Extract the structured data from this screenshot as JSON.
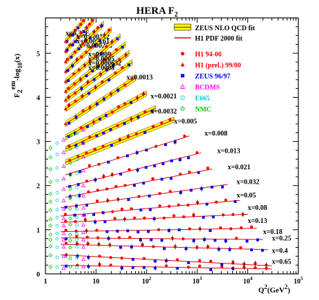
{
  "chart_data": {
    "type": "scatter",
    "title": "HERA F",
    "title_sub": "2",
    "xlabel": "Q2(GeV2)",
    "ylabel": "F2em-log10(x)",
    "xscale": "log",
    "xlim": [
      1,
      100000
    ],
    "ylim": [
      0,
      5.8
    ],
    "xticks": [
      {
        "value": 1,
        "label": "1"
      },
      {
        "value": 10,
        "label": "10"
      },
      {
        "value": 100,
        "label": "10",
        "exp": "2"
      },
      {
        "value": 1000,
        "label": "10",
        "exp": "3"
      },
      {
        "value": 10000,
        "label": "10",
        "exp": "4"
      },
      {
        "value": 100000,
        "label": "10",
        "exp": "5"
      }
    ],
    "yticks": [
      {
        "value": 0,
        "label": "0"
      },
      {
        "value": 1,
        "label": "1"
      },
      {
        "value": 2,
        "label": "2"
      },
      {
        "value": 3,
        "label": "3"
      },
      {
        "value": 4,
        "label": "4"
      },
      {
        "value": 5,
        "label": "5"
      }
    ],
    "legend": [
      {
        "label": "ZEUS NLO QCD fit",
        "marker": "band",
        "color": "#ffff00",
        "text_color": "#000000"
      },
      {
        "label": "H1 PDF 2000 fit",
        "marker": "line",
        "color": "#dd0000",
        "text_color": "#000000"
      },
      {
        "label": "H1 94-00",
        "marker": "circle",
        "color": "#ff0000",
        "text_color": "#ff0000"
      },
      {
        "label": "H1 (prel.) 99/00",
        "marker": "triangle",
        "color": "#ff0000",
        "text_color": "#ff0000"
      },
      {
        "label": "ZEUS 96/97",
        "marker": "square",
        "color": "#0000ff",
        "text_color": "#0000ff"
      },
      {
        "label": "BCDMS",
        "marker": "open-triangle",
        "color": "#ff00ff",
        "text_color": "#ff00ff"
      },
      {
        "label": "E665",
        "marker": "open-circle",
        "color": "#00cccc",
        "text_color": "#00cccc"
      },
      {
        "label": "NMC",
        "marker": "open-diamond",
        "color": "#00cc00",
        "text_color": "#00cc00"
      }
    ],
    "bins": [
      {
        "label": "x=6.32E-5",
        "y0": 4.75,
        "slope": 1.3,
        "qmin": 2.5,
        "qmax": 6.0,
        "label_q": 2.5,
        "label_y": 5.45
      },
      {
        "label": "x=0.000102",
        "y0": 4.55,
        "slope": 1.25,
        "qmin": 2.5,
        "qmax": 9.0,
        "label_q": 4.1,
        "label_y": 5.37
      },
      {
        "label": "x=0.000161",
        "y0": 4.35,
        "slope": 1.15,
        "qmin": 2.5,
        "qmax": 14,
        "label_q": 4.1,
        "label_y": 5.27
      },
      {
        "label": "x=0.000253",
        "y0": 4.17,
        "slope": 1.05,
        "qmin": 2.5,
        "qmax": 20,
        "label_q": 4.6,
        "label_y": 5.17
      },
      {
        "label": "x=0.0004",
        "y0": 3.98,
        "slope": 0.95,
        "qmin": 2.5,
        "qmax": 30,
        "label_q": 7.0,
        "label_y": 4.97
      },
      {
        "label": "x=0.0005",
        "y0": 3.78,
        "slope": 0.9,
        "qmin": 2.5,
        "qmax": 38,
        "label_q": 7.0,
        "label_y": 4.87
      },
      {
        "label": "x=0.000632",
        "y0": 3.6,
        "slope": 0.85,
        "qmin": 2.5,
        "qmax": 45,
        "label_q": 7.0,
        "label_y": 4.77
      },
      {
        "label": "x=0.0008",
        "y0": 3.42,
        "slope": 0.8,
        "qmin": 2.5,
        "qmax": 52,
        "label_q": 7.0,
        "label_y": 4.67
      },
      {
        "label": "x=0.0013",
        "y0": 3.1,
        "slope": 0.75,
        "qmin": 2.5,
        "qmax": 60,
        "label_q": 40,
        "label_y": 4.45
      },
      {
        "label": "x=0.0021",
        "y0": 2.85,
        "slope": 0.62,
        "qmin": 2.5,
        "qmax": 100,
        "label_q": 120,
        "label_y": 4.02
      },
      {
        "label": "x=0.0032",
        "y0": 2.62,
        "slope": 0.52,
        "qmin": 2.5,
        "qmax": 150,
        "label_q": 120,
        "label_y": 3.68
      },
      {
        "label": "x=0.005",
        "y0": 2.35,
        "slope": 0.45,
        "qmin": 2.5,
        "qmax": 350,
        "label_q": 350,
        "label_y": 3.45
      },
      {
        "label": "x=0.008",
        "y0": 2.1,
        "slope": 0.36,
        "qmin": 2.5,
        "qmax": 700,
        "label_q": 1400,
        "label_y": 3.18
      },
      {
        "label": "x=0.013",
        "y0": 1.85,
        "slope": 0.29,
        "qmin": 2.5,
        "qmax": 1200,
        "label_q": 2500,
        "label_y": 2.78
      },
      {
        "label": "x=0.021",
        "y0": 1.65,
        "slope": 0.22,
        "qmin": 2.5,
        "qmax": 2000,
        "label_q": 4000,
        "label_y": 2.42
      },
      {
        "label": "x=0.032",
        "y0": 1.45,
        "slope": 0.16,
        "qmin": 2.0,
        "qmax": 4000,
        "label_q": 6000,
        "label_y": 2.08
      },
      {
        "label": "x=0.05",
        "y0": 1.28,
        "slope": 0.1,
        "qmin": 2.0,
        "qmax": 7000,
        "label_q": 6000,
        "label_y": 1.78
      },
      {
        "label": "x=0.08",
        "y0": 1.15,
        "slope": 0.05,
        "qmin": 2.0,
        "qmax": 10000,
        "label_q": 10000,
        "label_y": 1.5
      },
      {
        "label": "x=0.13",
        "y0": 0.95,
        "slope": 0.02,
        "qmin": 2.0,
        "qmax": 15000,
        "label_q": 10000,
        "label_y": 1.2
      },
      {
        "label": "x=0.18",
        "y0": 0.82,
        "slope": -0.01,
        "qmin": 2.0,
        "qmax": 20000,
        "label_q": 20000,
        "label_y": 0.95
      },
      {
        "label": "x=0.25",
        "y0": 0.68,
        "slope": -0.03,
        "qmin": 2.0,
        "qmax": 25000,
        "label_q": 30000,
        "label_y": 0.8
      },
      {
        "label": "x=0.4",
        "y0": 0.45,
        "slope": -0.06,
        "qmin": 2.0,
        "qmax": 30000,
        "label_q": 30000,
        "label_y": 0.52
      },
      {
        "label": "x=0.65",
        "y0": 0.2,
        "slope": -0.02,
        "qmin": 2.0,
        "qmax": 30000,
        "label_q": 30000,
        "label_y": 0.27
      }
    ]
  }
}
